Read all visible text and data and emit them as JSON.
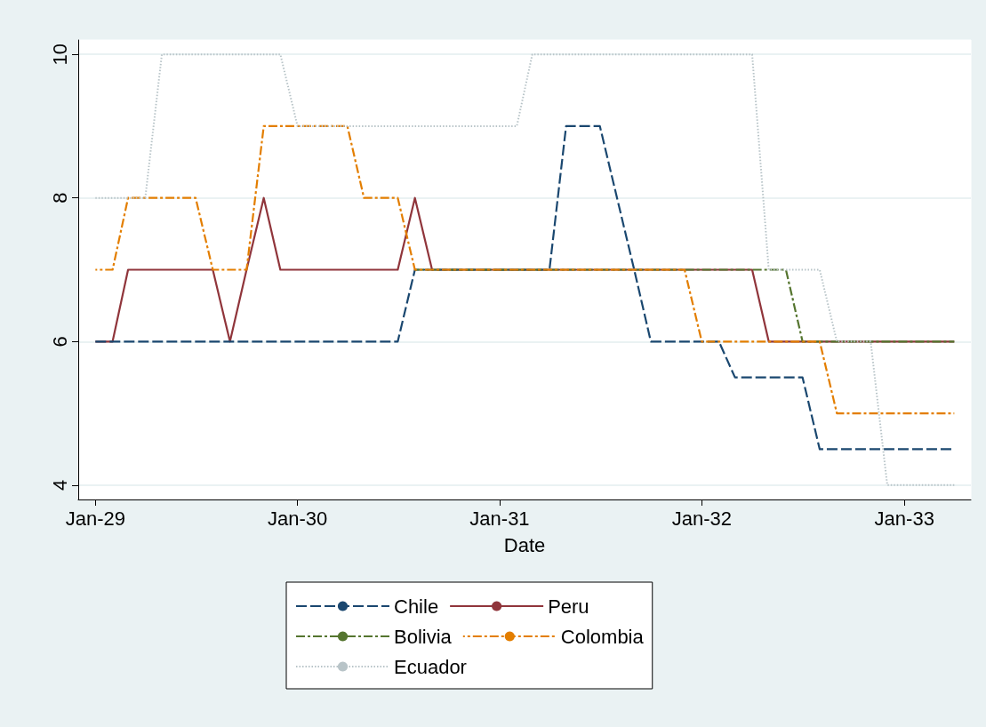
{
  "chart_data": {
    "type": "line",
    "xlabel": "Date",
    "x": [
      "1929-01",
      "1929-02",
      "1929-03",
      "1929-04",
      "1929-05",
      "1929-06",
      "1929-07",
      "1929-08",
      "1929-09",
      "1929-10",
      "1929-11",
      "1929-12",
      "1930-01",
      "1930-02",
      "1930-03",
      "1930-04",
      "1930-05",
      "1930-06",
      "1930-07",
      "1930-08",
      "1930-09",
      "1930-10",
      "1930-11",
      "1930-12",
      "1931-01",
      "1931-02",
      "1931-03",
      "1931-04",
      "1931-05",
      "1931-06",
      "1931-07",
      "1931-08",
      "1931-09",
      "1931-10",
      "1931-11",
      "1931-12",
      "1932-01",
      "1932-02",
      "1932-03",
      "1932-04",
      "1932-05",
      "1932-06",
      "1932-07",
      "1932-08",
      "1932-09",
      "1932-10",
      "1932-11",
      "1932-12",
      "1933-01",
      "1933-02",
      "1933-03",
      "1933-04"
    ],
    "series": [
      {
        "name": "Chile",
        "color": "#1a476f",
        "line_style": "dashed",
        "values": [
          6,
          6,
          6,
          6,
          6,
          6,
          6,
          6,
          6,
          6,
          6,
          6,
          6,
          6,
          6,
          6,
          6,
          6,
          6,
          7,
          7,
          7,
          7,
          7,
          7,
          7,
          7,
          7,
          9,
          9,
          9,
          8,
          7,
          6,
          6,
          6,
          6,
          6,
          5.5,
          5.5,
          5.5,
          5.5,
          5.5,
          4.5,
          4.5,
          4.5,
          4.5,
          4.5,
          4.5,
          4.5,
          4.5,
          4.5
        ]
      },
      {
        "name": "Peru",
        "color": "#90353b",
        "line_style": "solid",
        "values": [
          6,
          6,
          7,
          7,
          7,
          7,
          7,
          7,
          6,
          7,
          8,
          7,
          7,
          7,
          7,
          7,
          7,
          7,
          7,
          8,
          7,
          7,
          7,
          7,
          7,
          7,
          7,
          7,
          7,
          7,
          7,
          7,
          7,
          7,
          7,
          7,
          7,
          7,
          7,
          7,
          6,
          6,
          6,
          6,
          6,
          6,
          6,
          6,
          6,
          6,
          6,
          6
        ]
      },
      {
        "name": "Bolivia",
        "color": "#55752f",
        "line_style": "dashdot",
        "values": [
          null,
          null,
          null,
          null,
          null,
          null,
          null,
          null,
          null,
          null,
          null,
          null,
          null,
          null,
          null,
          null,
          null,
          null,
          null,
          7,
          7,
          7,
          7,
          7,
          7,
          7,
          7,
          7,
          7,
          7,
          7,
          7,
          7,
          7,
          7,
          7,
          7,
          7,
          7,
          7,
          7,
          7,
          6,
          6,
          6,
          6,
          6,
          6,
          6,
          6,
          6,
          6
        ]
      },
      {
        "name": "Colombia",
        "color": "#e37e00",
        "line_style": "dashdot",
        "values": [
          7,
          7,
          8,
          8,
          8,
          8,
          8,
          7,
          7,
          7,
          9,
          9,
          9,
          9,
          9,
          9,
          8,
          8,
          8,
          7,
          7,
          7,
          7,
          7,
          7,
          7,
          7,
          7,
          7,
          7,
          7,
          7,
          7,
          7,
          7,
          7,
          6,
          6,
          6,
          6,
          6,
          6,
          6,
          6,
          5,
          5,
          5,
          5,
          5,
          5,
          5,
          5
        ]
      },
      {
        "name": "Ecuador",
        "color": "#b8c4c8",
        "line_style": "dotted",
        "values": [
          8,
          8,
          8,
          8,
          10,
          10,
          10,
          10,
          10,
          10,
          10,
          10,
          9,
          9,
          9,
          9,
          9,
          9,
          9,
          9,
          9,
          9,
          9,
          9,
          9,
          9,
          10,
          10,
          10,
          10,
          10,
          10,
          10,
          10,
          10,
          10,
          10,
          10,
          10,
          10,
          7,
          7,
          7,
          7,
          6,
          6,
          6,
          4,
          4,
          4,
          4,
          4
        ]
      }
    ],
    "xlim": [
      "1928-12",
      "1933-05"
    ],
    "xticks": [
      {
        "value": "1929-01",
        "label": "Jan-29"
      },
      {
        "value": "1930-01",
        "label": "Jan-30"
      },
      {
        "value": "1931-01",
        "label": "Jan-31"
      },
      {
        "value": "1932-01",
        "label": "Jan-32"
      },
      {
        "value": "1933-01",
        "label": "Jan-33"
      }
    ],
    "ylim": [
      3.8,
      10.2
    ],
    "yticks": [
      4,
      6,
      8,
      10
    ],
    "grid": "y",
    "legend": "bottom",
    "marker": "none"
  }
}
